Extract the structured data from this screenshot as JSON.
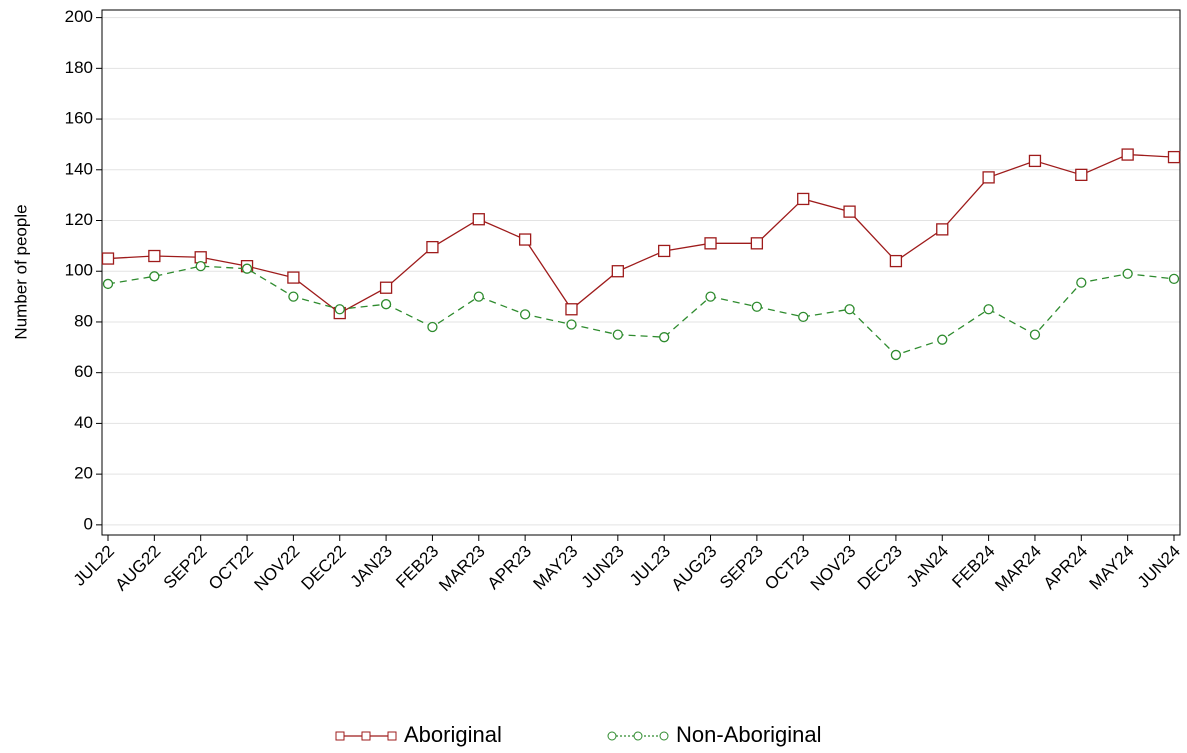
{
  "chart_data": {
    "type": "line",
    "y_label": "Number of people",
    "categories": [
      "JUL22",
      "AUG22",
      "SEP22",
      "OCT22",
      "NOV22",
      "DEC22",
      "JAN23",
      "FEB23",
      "MAR23",
      "APR23",
      "MAY23",
      "JUN23",
      "JUL23",
      "AUG23",
      "SEP23",
      "OCT23",
      "NOV23",
      "DEC23",
      "JAN24",
      "FEB24",
      "MAR24",
      "APR24",
      "MAY24",
      "JUN24"
    ],
    "series": [
      {
        "name": "Aboriginal",
        "color": "#9e1b1b",
        "marker": "square",
        "line_style": "solid",
        "values": [
          105,
          106,
          105.5,
          102,
          97.5,
          83.5,
          93.5,
          109.5,
          120.5,
          112.5,
          85,
          100,
          108,
          111,
          111,
          128.5,
          123.5,
          104,
          116.5,
          137,
          143.5,
          138,
          146,
          145
        ]
      },
      {
        "name": "Non-Aboriginal",
        "color": "#2e8b2e",
        "marker": "circle",
        "line_style": "dashed",
        "values": [
          95,
          98,
          102,
          101,
          90,
          85,
          87,
          78,
          90,
          83,
          79,
          75,
          74,
          90,
          86,
          82,
          85,
          67,
          73,
          85,
          75,
          95.5,
          99,
          97
        ]
      }
    ],
    "ylim": [
      -4,
      203
    ],
    "yticks": [
      0,
      20,
      40,
      60,
      80,
      100,
      120,
      140,
      160,
      180,
      200
    ],
    "grid": true
  }
}
